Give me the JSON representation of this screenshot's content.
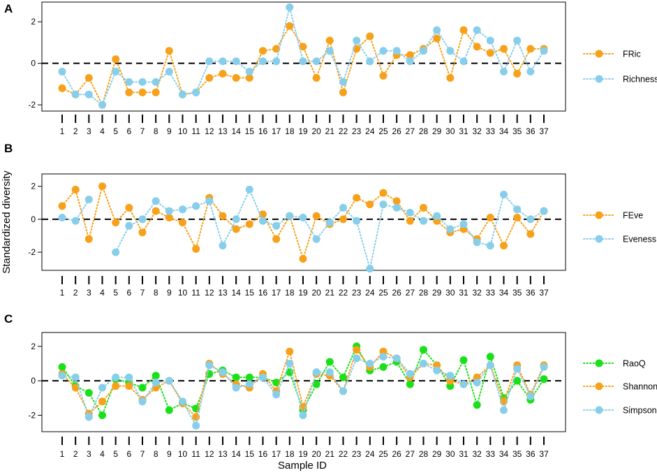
{
  "figure": {
    "ylabel": "Standardized diversity",
    "xlabel": "Sample ID"
  },
  "chart_data": [
    {
      "type": "scatter",
      "panel": "A",
      "title": "",
      "xlabel": "",
      "ylabel": "",
      "x": [
        1,
        2,
        3,
        4,
        5,
        6,
        7,
        8,
        9,
        10,
        11,
        12,
        13,
        14,
        15,
        16,
        17,
        18,
        19,
        20,
        21,
        22,
        23,
        24,
        25,
        26,
        27,
        28,
        29,
        30,
        31,
        32,
        33,
        34,
        35,
        36,
        37
      ],
      "ylim": [
        -2.3,
        2.95
      ],
      "yticks": [
        -2,
        0,
        2
      ],
      "reference_line": 0,
      "legend_position": "right",
      "series": [
        {
          "name": "FRic",
          "color": "#F7A11A",
          "values": [
            -1.2,
            -1.5,
            -0.7,
            -2.0,
            0.2,
            -1.4,
            -1.4,
            -1.4,
            0.6,
            -1.5,
            -1.4,
            -0.7,
            -0.5,
            -0.7,
            -0.7,
            0.6,
            0.7,
            1.8,
            0.8,
            -0.7,
            1.1,
            -1.4,
            0.7,
            1.3,
            -0.6,
            0.4,
            0.4,
            0.7,
            1.2,
            -0.7,
            1.6,
            0.8,
            0.5,
            0.7,
            -0.5,
            0.7,
            0.7
          ]
        },
        {
          "name": "Richness",
          "color": "#87CEEB",
          "values": [
            -0.4,
            -1.5,
            -1.5,
            -2.0,
            -0.4,
            -0.9,
            -0.9,
            -0.9,
            -0.4,
            -1.5,
            -1.4,
            0.1,
            0.1,
            0.1,
            -0.4,
            0.1,
            0.1,
            2.7,
            0.1,
            0.1,
            0.6,
            -0.9,
            1.1,
            0.1,
            0.6,
            0.6,
            0.1,
            0.6,
            1.6,
            0.6,
            0.1,
            1.6,
            1.1,
            -0.4,
            1.1,
            -0.4,
            0.6
          ]
        }
      ]
    },
    {
      "type": "scatter",
      "panel": "B",
      "title": "",
      "xlabel": "",
      "ylabel": "",
      "x": [
        1,
        2,
        3,
        4,
        5,
        6,
        7,
        8,
        9,
        10,
        11,
        12,
        13,
        14,
        15,
        16,
        17,
        18,
        19,
        20,
        21,
        22,
        23,
        24,
        25,
        26,
        27,
        28,
        29,
        30,
        31,
        32,
        33,
        34,
        35,
        36,
        37
      ],
      "ylim": [
        -3.1,
        2.75
      ],
      "yticks": [
        -2,
        0,
        2
      ],
      "reference_line": 0,
      "legend_position": "right",
      "series": [
        {
          "name": "FEve",
          "color": "#F7A11A",
          "values": [
            0.8,
            1.8,
            -1.2,
            2.0,
            -0.2,
            0.7,
            -0.8,
            0.5,
            0.1,
            -0.2,
            -1.8,
            1.3,
            0.2,
            -0.6,
            -0.3,
            0.3,
            -1.2,
            0.2,
            -2.4,
            0.2,
            -0.3,
            0.0,
            1.3,
            0.9,
            1.6,
            1.1,
            -0.1,
            0.7,
            -0.1,
            -0.8,
            -0.6,
            -1.2,
            0.1,
            -1.6,
            0.1,
            -0.9,
            0.5
          ]
        },
        {
          "name": "Eveness",
          "color": "#87CEEB",
          "values": [
            0.1,
            -0.1,
            1.2,
            null,
            -2.0,
            -0.4,
            0.0,
            1.1,
            0.5,
            0.6,
            0.8,
            1.1,
            -1.6,
            0.0,
            1.8,
            -0.1,
            -0.4,
            0.2,
            0.1,
            -1.2,
            -0.2,
            0.7,
            -0.1,
            -3.0,
            0.9,
            0.7,
            0.4,
            -0.1,
            0.2,
            -0.6,
            -0.3,
            -1.4,
            -1.6,
            1.5,
            0.6,
            0.0,
            0.5
          ]
        }
      ]
    },
    {
      "type": "scatter",
      "panel": "C",
      "title": "",
      "xlabel": "",
      "ylabel": "",
      "x": [
        1,
        2,
        3,
        4,
        5,
        6,
        7,
        8,
        9,
        10,
        11,
        12,
        13,
        14,
        15,
        16,
        17,
        18,
        19,
        20,
        21,
        22,
        23,
        24,
        25,
        26,
        27,
        28,
        29,
        30,
        31,
        32,
        33,
        34,
        35,
        36,
        37
      ],
      "ylim": [
        -2.95,
        2.8
      ],
      "yticks": [
        -2,
        0,
        2
      ],
      "reference_line": 0,
      "legend_position": "right",
      "series": [
        {
          "name": "RaoQ",
          "color": "#1AE01A",
          "values": [
            0.8,
            -0.3,
            -0.7,
            -2.0,
            0.1,
            -0.1,
            -0.4,
            0.3,
            -1.7,
            -1.3,
            -1.6,
            0.4,
            0.6,
            0.2,
            0.2,
            0.2,
            -0.1,
            0.5,
            -1.7,
            -0.2,
            1.1,
            0.2,
            2.0,
            0.6,
            0.8,
            1.1,
            -0.2,
            1.8,
            0.9,
            -0.3,
            1.2,
            -1.4,
            1.4,
            -1.0,
            0.0,
            -1.1,
            0.1
          ]
        },
        {
          "name": "Shannon",
          "color": "#F7A11A",
          "values": [
            0.4,
            -0.4,
            -1.9,
            -1.2,
            -0.3,
            -0.3,
            -1.1,
            -0.4,
            0.0,
            -1.3,
            -2.1,
            1.0,
            0.4,
            -0.2,
            -0.4,
            0.4,
            -0.6,
            1.7,
            -1.5,
            0.4,
            0.3,
            -0.6,
            1.8,
            0.8,
            1.7,
            1.3,
            0.2,
            1.0,
            0.9,
            0.0,
            -0.2,
            0.2,
            0.9,
            -1.2,
            0.9,
            -0.8,
            0.9
          ]
        },
        {
          "name": "Simpson",
          "color": "#87CEEB",
          "values": [
            0.3,
            0.2,
            -2.1,
            -0.4,
            0.2,
            0.2,
            -1.2,
            -0.1,
            0.0,
            -1.2,
            -2.6,
            0.9,
            0.5,
            -0.4,
            -0.2,
            0.2,
            -0.8,
            1.0,
            -2.0,
            0.5,
            0.5,
            -0.6,
            1.3,
            1.0,
            1.4,
            1.3,
            0.4,
            1.0,
            0.6,
            0.3,
            -0.2,
            -0.1,
            0.9,
            -1.7,
            0.7,
            -0.9,
            0.8
          ]
        }
      ]
    }
  ]
}
